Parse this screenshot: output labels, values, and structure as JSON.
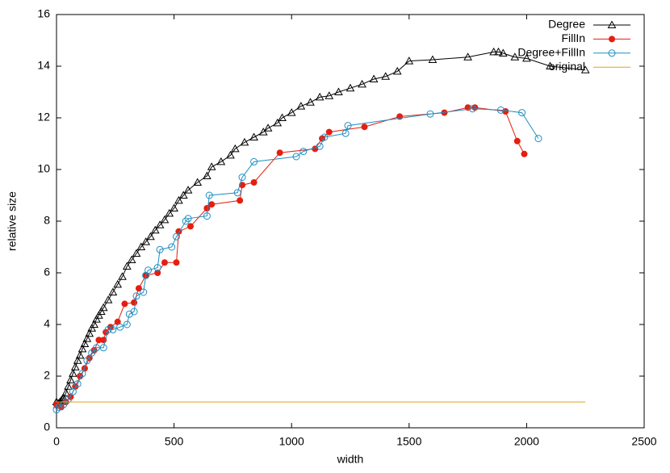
{
  "chart_data": {
    "type": "line",
    "xlabel": "width",
    "ylabel": "relative size",
    "xlim": [
      0,
      2500
    ],
    "ylim": [
      0,
      16
    ],
    "xticks": [
      0,
      500,
      1000,
      1500,
      2000,
      2500
    ],
    "yticks": [
      0,
      2,
      4,
      6,
      8,
      10,
      12,
      14,
      16
    ],
    "legend": "top right",
    "series": [
      {
        "name": "Degree",
        "color": "#000000",
        "marker": "triangle",
        "x": [
          0,
          5,
          10,
          15,
          20,
          25,
          30,
          40,
          50,
          60,
          70,
          80,
          90,
          100,
          110,
          120,
          130,
          140,
          150,
          160,
          170,
          180,
          190,
          200,
          220,
          240,
          260,
          280,
          300,
          320,
          340,
          360,
          380,
          400,
          420,
          440,
          460,
          480,
          500,
          520,
          540,
          560,
          600,
          640,
          660,
          700,
          740,
          760,
          800,
          840,
          880,
          900,
          940,
          960,
          1000,
          1040,
          1080,
          1120,
          1160,
          1200,
          1250,
          1300,
          1350,
          1400,
          1450,
          1500,
          1600,
          1750,
          1860,
          1880,
          1900,
          1950,
          2000,
          2100,
          2250
        ],
        "values": [
          1.0,
          0.9,
          0.95,
          1.0,
          1.05,
          1.1,
          1.15,
          1.35,
          1.6,
          1.85,
          2.1,
          2.35,
          2.6,
          2.8,
          3.05,
          3.25,
          3.45,
          3.65,
          3.85,
          4.0,
          4.2,
          4.35,
          4.5,
          4.65,
          4.95,
          5.25,
          5.55,
          5.85,
          6.25,
          6.5,
          6.75,
          7.0,
          7.2,
          7.4,
          7.65,
          7.85,
          8.05,
          8.3,
          8.5,
          8.8,
          9.0,
          9.2,
          9.5,
          9.75,
          10.1,
          10.3,
          10.55,
          10.8,
          11.05,
          11.25,
          11.45,
          11.6,
          11.8,
          12.0,
          12.2,
          12.45,
          12.6,
          12.8,
          12.85,
          13.0,
          13.15,
          13.3,
          13.5,
          13.6,
          13.8,
          14.2,
          14.25,
          14.35,
          14.55,
          14.55,
          14.5,
          14.35,
          14.3,
          14.0,
          13.85
        ]
      },
      {
        "name": "FillIn",
        "color": "#e51e10",
        "marker": "circle-filled",
        "x": [
          0,
          20,
          40,
          60,
          80,
          100,
          120,
          140,
          160,
          180,
          200,
          210,
          230,
          260,
          290,
          330,
          350,
          380,
          430,
          460,
          510,
          520,
          570,
          640,
          660,
          780,
          790,
          840,
          950,
          1100,
          1130,
          1160,
          1310,
          1460,
          1650,
          1750,
          1780,
          1910,
          1960,
          1990
        ],
        "values": [
          0.9,
          0.8,
          1.0,
          1.2,
          1.6,
          2.0,
          2.3,
          2.7,
          3.0,
          3.4,
          3.4,
          3.7,
          3.9,
          4.1,
          4.8,
          4.85,
          5.4,
          5.9,
          6.0,
          6.4,
          6.4,
          7.6,
          7.8,
          8.5,
          8.65,
          8.8,
          9.4,
          9.5,
          10.65,
          10.8,
          11.2,
          11.45,
          11.65,
          12.05,
          12.2,
          12.4,
          12.4,
          12.25,
          11.1,
          10.6
        ]
      },
      {
        "name": "Degree+FillIn",
        "color": "#1f8fc2",
        "marker": "circle-open",
        "x": [
          0,
          10,
          30,
          50,
          70,
          90,
          110,
          130,
          150,
          170,
          200,
          220,
          240,
          270,
          300,
          310,
          330,
          340,
          370,
          380,
          390,
          430,
          440,
          490,
          510,
          550,
          560,
          640,
          650,
          770,
          790,
          840,
          1020,
          1050,
          1120,
          1140,
          1230,
          1240,
          1590,
          1770,
          1890,
          1980,
          2050
        ],
        "values": [
          0.7,
          0.8,
          0.9,
          1.1,
          1.4,
          1.7,
          2.1,
          2.6,
          2.9,
          3.1,
          3.1,
          3.8,
          3.8,
          3.9,
          4.0,
          4.4,
          4.5,
          5.1,
          5.25,
          5.9,
          6.1,
          6.2,
          6.9,
          7.0,
          7.4,
          8.0,
          8.1,
          8.2,
          9.0,
          9.1,
          9.7,
          10.3,
          10.5,
          10.7,
          10.9,
          11.25,
          11.4,
          11.7,
          12.15,
          12.35,
          12.3,
          12.2,
          11.2
        ]
      },
      {
        "name": "original",
        "color": "#e6a010",
        "marker": "none",
        "x": [
          0,
          2250
        ],
        "values": [
          1,
          1
        ]
      }
    ]
  }
}
